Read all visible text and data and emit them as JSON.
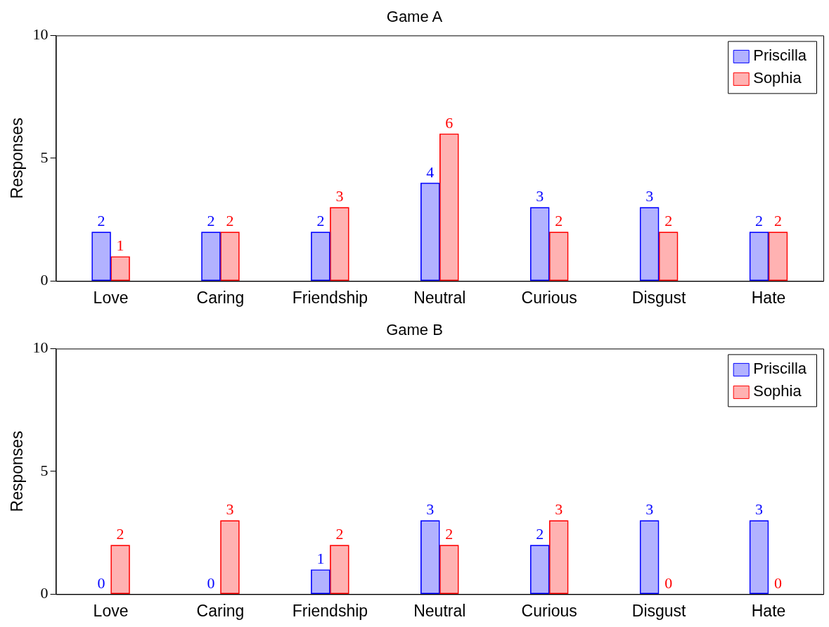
{
  "chart_data": [
    {
      "type": "bar",
      "title": "Game A",
      "ylabel": "Responses",
      "categories": [
        "Love",
        "Caring",
        "Friendship",
        "Neutral",
        "Curious",
        "Disgust",
        "Hate"
      ],
      "series": [
        {
          "name": "Priscilla",
          "color": "#0000ff",
          "values": [
            2,
            2,
            2,
            4,
            3,
            3,
            2
          ]
        },
        {
          "name": "Sophia",
          "color": "#ff0000",
          "values": [
            1,
            2,
            3,
            6,
            2,
            2,
            2
          ]
        }
      ],
      "ylim": [
        0,
        10
      ],
      "yticks": [
        0,
        5,
        10
      ],
      "grid": false,
      "legend": "top right",
      "data_labels": true
    },
    {
      "type": "bar",
      "title": "Game B",
      "ylabel": "Responses",
      "categories": [
        "Love",
        "Caring",
        "Friendship",
        "Neutral",
        "Curious",
        "Disgust",
        "Hate"
      ],
      "series": [
        {
          "name": "Priscilla",
          "color": "#0000ff",
          "values": [
            0,
            0,
            1,
            3,
            2,
            3,
            3
          ]
        },
        {
          "name": "Sophia",
          "color": "#ff0000",
          "values": [
            2,
            3,
            2,
            2,
            3,
            0,
            0
          ]
        }
      ],
      "ylim": [
        0,
        10
      ],
      "yticks": [
        0,
        5,
        10
      ],
      "grid": false,
      "legend": "top right",
      "data_labels": true
    }
  ]
}
